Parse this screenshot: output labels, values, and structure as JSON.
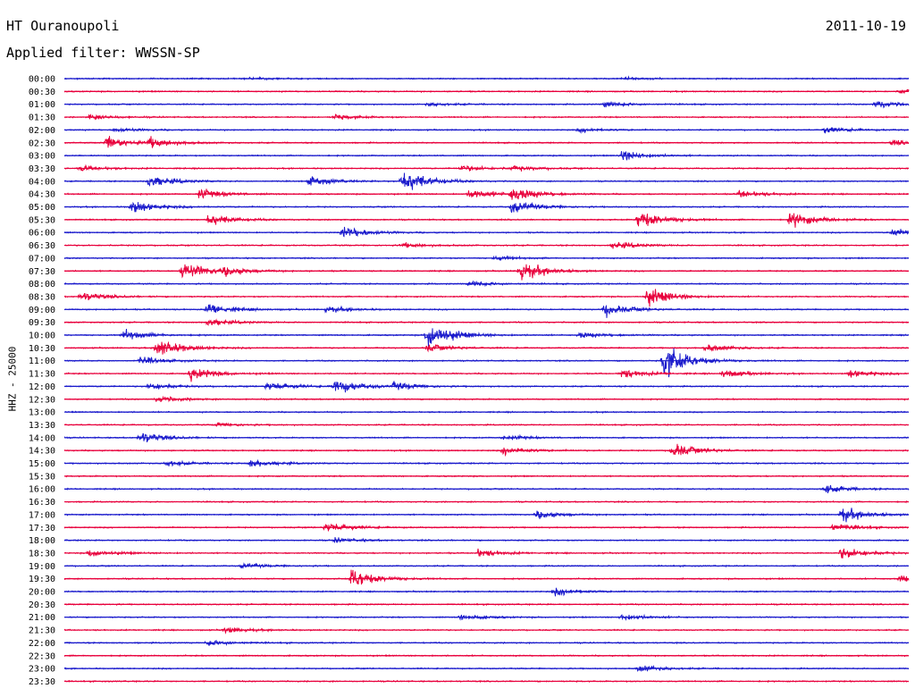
{
  "header": {
    "station": "HT Ouranoupoli",
    "date": "2011-10-19",
    "filter": "Applied filter: WWSSN-SP"
  },
  "colors": {
    "trace_a": "#1a1acc",
    "trace_b": "#e8003c"
  },
  "chart_data": {
    "type": "line",
    "subtype": "seismogram-helicorder",
    "ylabel": "HHZ - 25000",
    "row_labels": [
      "00:00",
      "00:30",
      "01:00",
      "01:30",
      "02:00",
      "02:30",
      "03:00",
      "03:30",
      "04:00",
      "04:30",
      "05:00",
      "05:30",
      "06:00",
      "06:30",
      "07:00",
      "07:30",
      "08:00",
      "08:30",
      "09:00",
      "09:30",
      "10:00",
      "10:30",
      "11:00",
      "11:30",
      "12:00",
      "12:30",
      "13:00",
      "13:30",
      "14:00",
      "14:30",
      "15:00",
      "15:30",
      "16:00",
      "16:30",
      "17:00",
      "17:30",
      "18:00",
      "18:30",
      "19:00",
      "19:30",
      "20:00",
      "20:30",
      "21:00",
      "21:30",
      "22:00",
      "22:30",
      "23:00",
      "23:30"
    ],
    "row_colors": [
      "blue",
      "red"
    ],
    "trace_duration_minutes": 30,
    "events": [
      {
        "row": 0,
        "t": 0.22,
        "amp": 0.15
      },
      {
        "row": 0,
        "t": 0.66,
        "amp": 0.2
      },
      {
        "row": 1,
        "t": 0.99,
        "amp": 0.35
      },
      {
        "row": 2,
        "t": 0.43,
        "amp": 0.25
      },
      {
        "row": 2,
        "t": 0.64,
        "amp": 0.5
      },
      {
        "row": 2,
        "t": 0.96,
        "amp": 0.6
      },
      {
        "row": 3,
        "t": 0.03,
        "amp": 0.4
      },
      {
        "row": 3,
        "t": 0.32,
        "amp": 0.4
      },
      {
        "row": 4,
        "t": 0.06,
        "amp": 0.3
      },
      {
        "row": 4,
        "t": 0.61,
        "amp": 0.3
      },
      {
        "row": 4,
        "t": 0.9,
        "amp": 0.5
      },
      {
        "row": 5,
        "t": 0.05,
        "amp": 1.0
      },
      {
        "row": 5,
        "t": 0.1,
        "amp": 0.8
      },
      {
        "row": 5,
        "t": 0.98,
        "amp": 0.4
      },
      {
        "row": 6,
        "t": 0.66,
        "amp": 0.8
      },
      {
        "row": 7,
        "t": 0.02,
        "amp": 0.4
      },
      {
        "row": 7,
        "t": 0.47,
        "amp": 0.5
      },
      {
        "row": 7,
        "t": 0.53,
        "amp": 0.4
      },
      {
        "row": 8,
        "t": 0.1,
        "amp": 1.0
      },
      {
        "row": 8,
        "t": 0.29,
        "amp": 0.7
      },
      {
        "row": 8,
        "t": 0.4,
        "amp": 2.0
      },
      {
        "row": 9,
        "t": 0.16,
        "amp": 0.8
      },
      {
        "row": 9,
        "t": 0.48,
        "amp": 0.8
      },
      {
        "row": 9,
        "t": 0.53,
        "amp": 1.2
      },
      {
        "row": 9,
        "t": 0.8,
        "amp": 0.6
      },
      {
        "row": 10,
        "t": 0.08,
        "amp": 1.0
      },
      {
        "row": 10,
        "t": 0.53,
        "amp": 1.0
      },
      {
        "row": 11,
        "t": 0.17,
        "amp": 1.0
      },
      {
        "row": 11,
        "t": 0.68,
        "amp": 1.5
      },
      {
        "row": 11,
        "t": 0.86,
        "amp": 1.3
      },
      {
        "row": 12,
        "t": 0.33,
        "amp": 1.0
      },
      {
        "row": 12,
        "t": 0.98,
        "amp": 0.6
      },
      {
        "row": 13,
        "t": 0.4,
        "amp": 0.4
      },
      {
        "row": 13,
        "t": 0.65,
        "amp": 0.6
      },
      {
        "row": 14,
        "t": 0.51,
        "amp": 0.3
      },
      {
        "row": 15,
        "t": 0.14,
        "amp": 1.4
      },
      {
        "row": 15,
        "t": 0.19,
        "amp": 0.6
      },
      {
        "row": 15,
        "t": 0.54,
        "amp": 1.6
      },
      {
        "row": 16,
        "t": 0.48,
        "amp": 0.5
      },
      {
        "row": 17,
        "t": 0.02,
        "amp": 0.7
      },
      {
        "row": 17,
        "t": 0.69,
        "amp": 1.5
      },
      {
        "row": 18,
        "t": 0.17,
        "amp": 1.0
      },
      {
        "row": 18,
        "t": 0.31,
        "amp": 0.5
      },
      {
        "row": 18,
        "t": 0.64,
        "amp": 1.0
      },
      {
        "row": 19,
        "t": 0.17,
        "amp": 0.6
      },
      {
        "row": 20,
        "t": 0.07,
        "amp": 0.8
      },
      {
        "row": 20,
        "t": 0.43,
        "amp": 2.3
      },
      {
        "row": 20,
        "t": 0.61,
        "amp": 0.5
      },
      {
        "row": 21,
        "t": 0.11,
        "amp": 1.6
      },
      {
        "row": 21,
        "t": 0.43,
        "amp": 0.6
      },
      {
        "row": 21,
        "t": 0.76,
        "amp": 0.6
      },
      {
        "row": 22,
        "t": 0.09,
        "amp": 0.6
      },
      {
        "row": 22,
        "t": 0.71,
        "amp": 2.7
      },
      {
        "row": 23,
        "t": 0.15,
        "amp": 1.0
      },
      {
        "row": 23,
        "t": 0.66,
        "amp": 0.7
      },
      {
        "row": 23,
        "t": 0.78,
        "amp": 0.6
      },
      {
        "row": 23,
        "t": 0.93,
        "amp": 0.6
      },
      {
        "row": 24,
        "t": 0.1,
        "amp": 0.6
      },
      {
        "row": 24,
        "t": 0.24,
        "amp": 0.7
      },
      {
        "row": 24,
        "t": 0.32,
        "amp": 1.2
      },
      {
        "row": 24,
        "t": 0.39,
        "amp": 0.6
      },
      {
        "row": 25,
        "t": 0.11,
        "amp": 0.5
      },
      {
        "row": 27,
        "t": 0.18,
        "amp": 0.3
      },
      {
        "row": 28,
        "t": 0.09,
        "amp": 0.9
      },
      {
        "row": 28,
        "t": 0.52,
        "amp": 0.4
      },
      {
        "row": 29,
        "t": 0.52,
        "amp": 0.6
      },
      {
        "row": 29,
        "t": 0.72,
        "amp": 1.2
      },
      {
        "row": 30,
        "t": 0.12,
        "amp": 0.4
      },
      {
        "row": 30,
        "t": 0.22,
        "amp": 0.6
      },
      {
        "row": 32,
        "t": 0.9,
        "amp": 0.6
      },
      {
        "row": 34,
        "t": 0.56,
        "amp": 0.6
      },
      {
        "row": 34,
        "t": 0.92,
        "amp": 1.2
      },
      {
        "row": 35,
        "t": 0.31,
        "amp": 0.8
      },
      {
        "row": 35,
        "t": 0.91,
        "amp": 0.6
      },
      {
        "row": 36,
        "t": 0.32,
        "amp": 0.4
      },
      {
        "row": 37,
        "t": 0.03,
        "amp": 0.6
      },
      {
        "row": 37,
        "t": 0.49,
        "amp": 0.6
      },
      {
        "row": 37,
        "t": 0.92,
        "amp": 1.0
      },
      {
        "row": 38,
        "t": 0.21,
        "amp": 0.4
      },
      {
        "row": 39,
        "t": 0.34,
        "amp": 1.6
      },
      {
        "row": 39,
        "t": 0.99,
        "amp": 0.6
      },
      {
        "row": 40,
        "t": 0.58,
        "amp": 0.6
      },
      {
        "row": 42,
        "t": 0.47,
        "amp": 0.5
      },
      {
        "row": 42,
        "t": 0.66,
        "amp": 0.5
      },
      {
        "row": 43,
        "t": 0.19,
        "amp": 0.5
      },
      {
        "row": 44,
        "t": 0.17,
        "amp": 0.5
      },
      {
        "row": 46,
        "t": 0.68,
        "amp": 0.5
      }
    ]
  }
}
